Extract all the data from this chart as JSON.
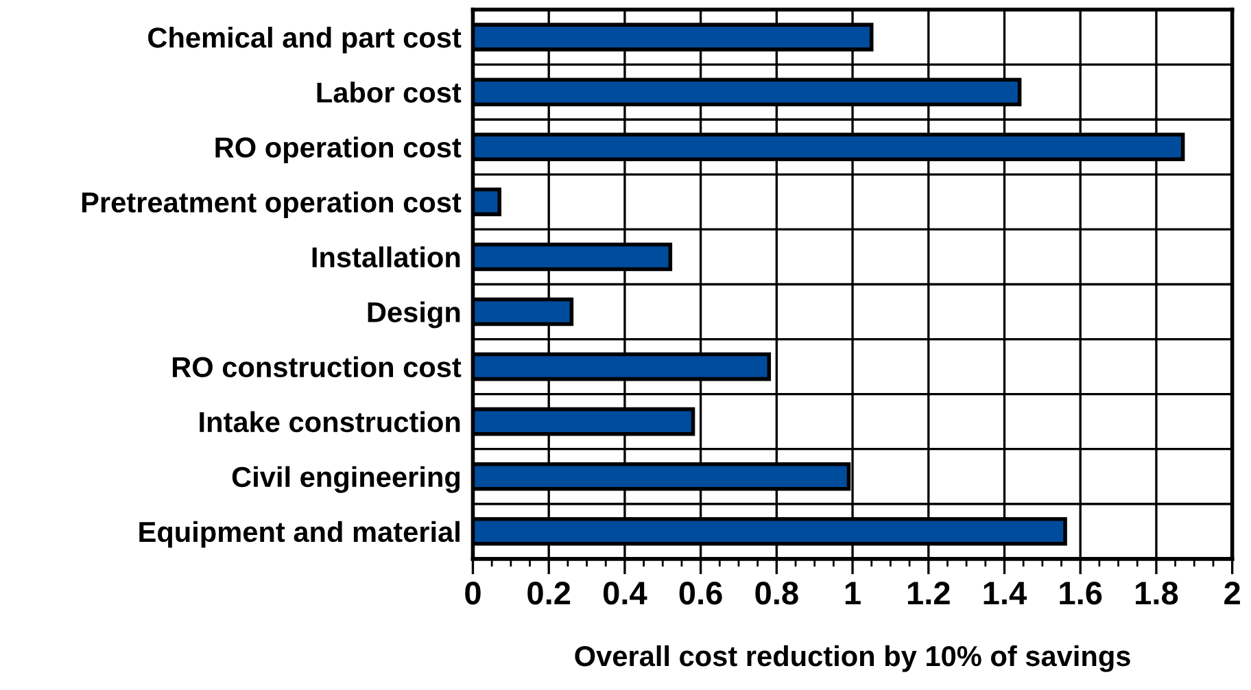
{
  "chart_data": {
    "type": "bar",
    "orientation": "horizontal",
    "xlabel": "Overall cost reduction by 10% of savings",
    "categories": [
      "Chemical and part cost",
      "Labor cost",
      "RO operation cost",
      "Pretreatment operation cost",
      "Installation",
      "Design",
      "RO construction cost",
      "Intake construction",
      "Civil engineering",
      "Equipment and material"
    ],
    "values": [
      1.05,
      1.44,
      1.87,
      0.07,
      0.52,
      0.26,
      0.78,
      0.58,
      0.99,
      1.56
    ],
    "color": "#004c9c",
    "xlim": [
      0,
      2
    ],
    "xticks": [
      0,
      0.2,
      0.4,
      0.6,
      0.8,
      1,
      1.2,
      1.4,
      1.6,
      1.8,
      2
    ],
    "grid": true,
    "legend": false
  }
}
